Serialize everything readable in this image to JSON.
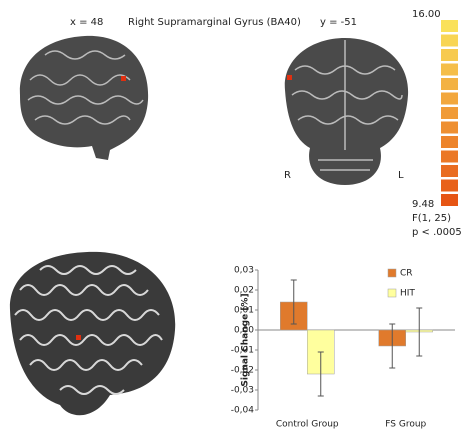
{
  "figure": {
    "sagittal_label": "x = 48",
    "region_title": "Right Supramarginal Gyrus (BA40)",
    "coronal_label": "y = -51",
    "colorbar_max": "16.00",
    "colorbar_min": "9.48",
    "stat_label": "F(1, 25)",
    "p_label": "p < .0005",
    "right_label": "R",
    "left_label": "L"
  },
  "chart_data": {
    "type": "bar",
    "y_label": "Signal Change [%]",
    "categories": [
      "Control Group",
      "FS Group"
    ],
    "series": [
      {
        "name": "CR",
        "color": "#e07a2c",
        "values": [
          0.014,
          -0.008
        ],
        "errors": [
          0.011,
          0.011
        ]
      },
      {
        "name": "HIT",
        "color": "#ffff9e",
        "values": [
          -0.022,
          -0.001
        ],
        "errors": [
          0.011,
          0.012
        ]
      }
    ],
    "ylim": [
      -0.04,
      0.03
    ],
    "yticks": [
      {
        "value": -0.04,
        "label": "-0,04"
      },
      {
        "value": -0.03,
        "label": "-0,03"
      },
      {
        "value": -0.02,
        "label": "-0,02"
      },
      {
        "value": -0.01,
        "label": "-0,01"
      },
      {
        "value": 0,
        "label": "0,00"
      },
      {
        "value": 0.01,
        "label": "0,01"
      },
      {
        "value": 0.02,
        "label": "0,02"
      },
      {
        "value": 0.03,
        "label": "0,03"
      }
    ],
    "legend": "upper right"
  }
}
